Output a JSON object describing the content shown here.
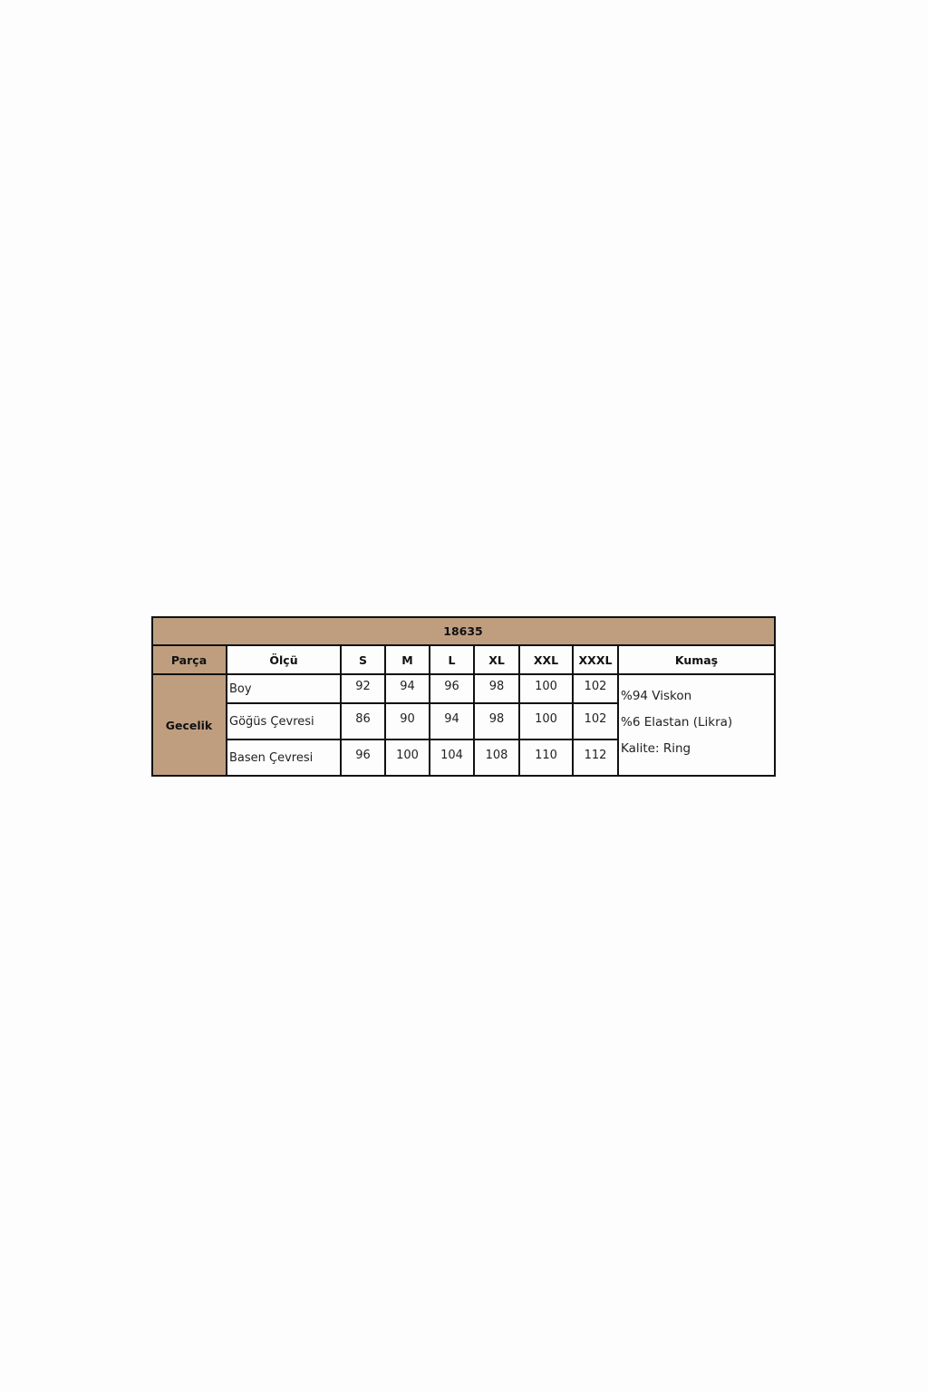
{
  "title": "18635",
  "headers": [
    "Parça",
    "Ölçü",
    "S",
    "M",
    "L",
    "XL",
    "XXL",
    "XXXL",
    "Kumaş"
  ],
  "part": "Gecelik",
  "rows": [
    {
      "label": "Boy",
      "values": [
        "92",
        "94",
        "96",
        "98",
        "100",
        "102"
      ]
    },
    {
      "label": "Göğüs Çevresi",
      "values": [
        "86",
        "90",
        "94",
        "98",
        "100",
        "102"
      ]
    },
    {
      "label": "Basen Çevresi",
      "values": [
        "96",
        "100",
        "104",
        "108",
        "110",
        "112"
      ]
    }
  ],
  "fabric": [
    "%94 Viskon",
    "%6 Elastan (Likra)",
    "Kalite: Ring"
  ],
  "colors": {
    "header_fill": "#bf9e80",
    "border": "#111111"
  }
}
